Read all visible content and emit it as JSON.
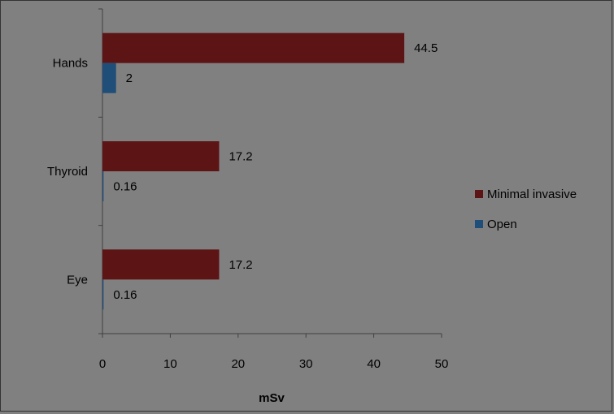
{
  "chart_data": {
    "type": "bar",
    "orientation": "horizontal",
    "categories": [
      "Hands",
      "Thyroid",
      "Eye"
    ],
    "series": [
      {
        "name": "Minimal invasive",
        "color": "#5c1414",
        "values": [
          44.5,
          17.2,
          17.2
        ],
        "labels": [
          "44.5",
          "17.2",
          "17.2"
        ]
      },
      {
        "name": "Open",
        "color": "#1f4e79",
        "values": [
          2,
          0.16,
          0.16
        ],
        "labels": [
          "2",
          "0.16",
          "0.16"
        ]
      }
    ],
    "xlabel": "mSv",
    "ylabel": "",
    "title": "",
    "xlim": [
      0,
      50
    ],
    "xticks": [
      "0",
      "10",
      "20",
      "30",
      "40",
      "50"
    ],
    "grid": false,
    "legend_position": "right"
  }
}
